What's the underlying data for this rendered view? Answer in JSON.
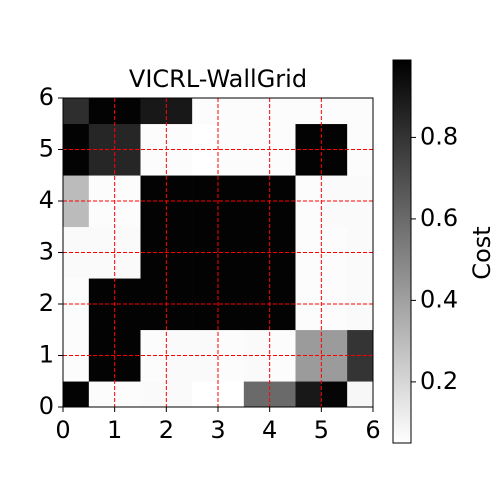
{
  "chart_data": {
    "type": "heatmap",
    "title": "VICRL-WallGrid",
    "xlim": [
      0,
      6
    ],
    "ylim": [
      0,
      6
    ],
    "xticks": [
      0,
      1,
      2,
      3,
      4,
      5,
      6
    ],
    "yticks": [
      0,
      1,
      2,
      3,
      4,
      5,
      6
    ],
    "grid": true,
    "grid_color": "#ff0000",
    "colormap": "gray_r",
    "z": [
      [
        0.98,
        0.06,
        0.06,
        0.07,
        0.07,
        0.05,
        0.05,
        0.6,
        0.6,
        0.9,
        0.97,
        0.08
      ],
      [
        0.06,
        0.98,
        0.98,
        0.06,
        0.07,
        0.07,
        0.06,
        0.07,
        0.06,
        0.42,
        0.42,
        0.8
      ],
      [
        0.06,
        0.98,
        0.98,
        0.06,
        0.07,
        0.07,
        0.06,
        0.07,
        0.06,
        0.42,
        0.42,
        0.8
      ],
      [
        0.06,
        0.98,
        0.98,
        0.98,
        0.98,
        0.98,
        0.98,
        0.98,
        0.98,
        0.06,
        0.06,
        0.07
      ],
      [
        0.06,
        0.98,
        0.98,
        0.98,
        0.98,
        0.98,
        0.98,
        0.98,
        0.98,
        0.06,
        0.06,
        0.07
      ],
      [
        0.07,
        0.07,
        0.07,
        0.98,
        0.98,
        0.98,
        0.98,
        0.98,
        0.98,
        0.06,
        0.06,
        0.07
      ],
      [
        0.07,
        0.07,
        0.07,
        0.98,
        0.98,
        0.98,
        0.98,
        0.98,
        0.98,
        0.06,
        0.06,
        0.07
      ],
      [
        0.3,
        0.06,
        0.06,
        0.98,
        0.98,
        0.98,
        0.98,
        0.98,
        0.98,
        0.06,
        0.07,
        0.07
      ],
      [
        0.3,
        0.06,
        0.06,
        0.98,
        0.98,
        0.98,
        0.98,
        0.98,
        0.98,
        0.06,
        0.07,
        0.07
      ],
      [
        0.98,
        0.85,
        0.85,
        0.06,
        0.06,
        0.05,
        0.06,
        0.06,
        0.06,
        0.98,
        0.98,
        0.06
      ],
      [
        0.98,
        0.85,
        0.85,
        0.06,
        0.06,
        0.05,
        0.06,
        0.06,
        0.06,
        0.98,
        0.98,
        0.06
      ],
      [
        0.82,
        0.98,
        0.98,
        0.9,
        0.9,
        0.06,
        0.06,
        0.06,
        0.06,
        0.06,
        0.06,
        0.06
      ]
    ],
    "colorbar": {
      "label": "Cost",
      "clim": [
        0.05,
        0.99
      ],
      "ticks": [
        0.2,
        0.4,
        0.6,
        0.8
      ]
    }
  }
}
